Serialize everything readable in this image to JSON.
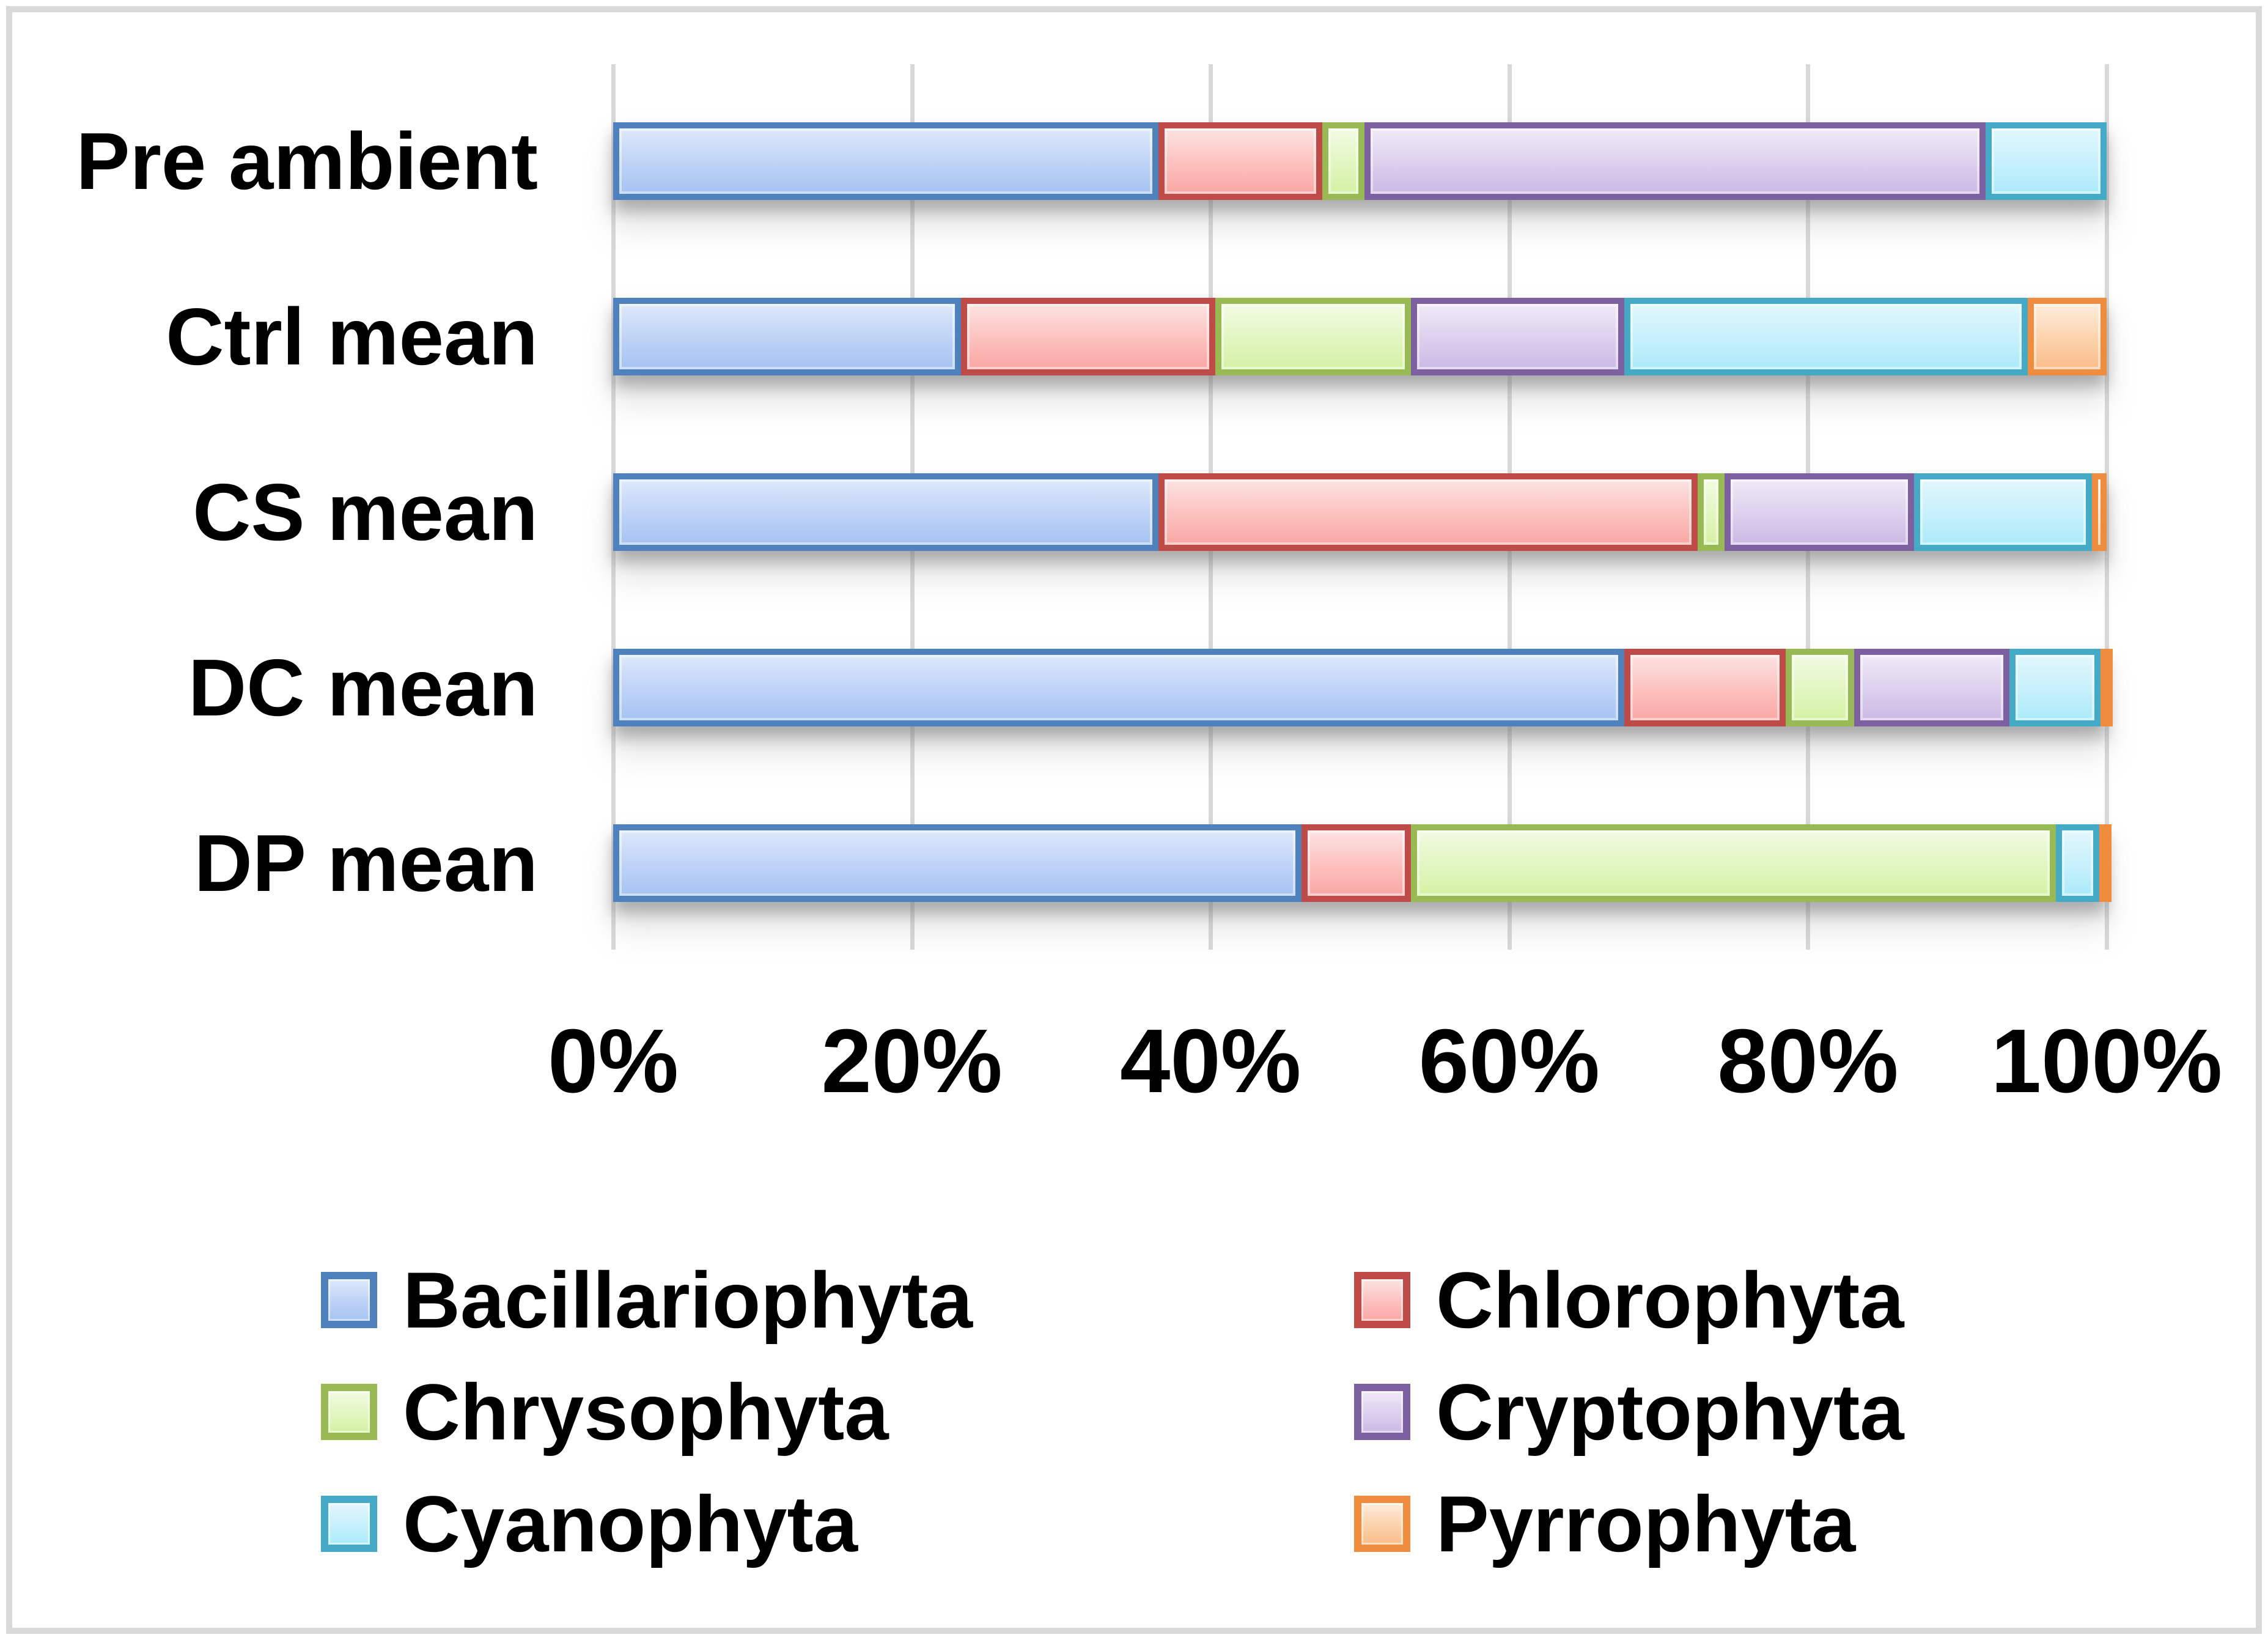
{
  "chart_data": {
    "type": "bar",
    "subtype": "horizontal-100pct-stacked",
    "title": "",
    "xlabel": "",
    "ylabel": "",
    "xlim": [
      0,
      100
    ],
    "grid": true,
    "legend_position": "bottom-two-columns",
    "x_ticks": [
      "0%",
      "20%",
      "40%",
      "60%",
      "80%",
      "100%"
    ],
    "x_tick_values": [
      0,
      20,
      40,
      60,
      80,
      100
    ],
    "categories": [
      "Pre ambient",
      "Ctrl mean",
      "CS mean",
      "DC mean",
      "DP mean"
    ],
    "series": [
      {
        "name": "Bacillariophyta",
        "border_color": "#4F81BD",
        "fill_top": "#DEE9FA",
        "fill_mid": "#BDD2F6",
        "fill_bottom": "#A6C3F2",
        "values": [
          36.5,
          23.3,
          36.5,
          67.7,
          46.1
        ]
      },
      {
        "name": "Chlorophyta",
        "border_color": "#BE4B48",
        "fill_top": "#FBE4E3",
        "fill_mid": "#FCC0BD",
        "fill_bottom": "#FAA7A4",
        "values": [
          11.0,
          17.0,
          36.1,
          10.8,
          7.3
        ]
      },
      {
        "name": "Chrysophyta",
        "border_color": "#98B954",
        "fill_top": "#F2FBE3",
        "fill_mid": "#E1F6C0",
        "fill_bottom": "#D5F1A4",
        "values": [
          2.8,
          13.1,
          1.8,
          4.6,
          43.2
        ]
      },
      {
        "name": "Cryptophyta",
        "border_color": "#7D60A0",
        "fill_top": "#EFEAF7",
        "fill_mid": "#DCCFEC",
        "fill_bottom": "#CBB9E5",
        "values": [
          41.6,
          14.3,
          12.7,
          10.4,
          0
        ]
      },
      {
        "name": "Cyanophyta",
        "border_color": "#45AAC6",
        "fill_top": "#E2F7FD",
        "fill_mid": "#C6F0FB",
        "fill_bottom": "#ABEAFA",
        "values": [
          8.1,
          27.0,
          11.9,
          6.1,
          2.9
        ]
      },
      {
        "name": "Pyrrophyta",
        "border_color": "#F08C3D",
        "fill_top": "#FDEDDC",
        "fill_mid": "#FCD2AB",
        "fill_bottom": "#FABD89",
        "values": [
          0,
          5.3,
          1.0,
          0.4,
          0.5
        ]
      }
    ]
  },
  "layout_colors": {
    "frame_border": "#d9d9d9",
    "gridline": "#d9d9d9",
    "text": "#000000",
    "background": "#ffffff"
  }
}
